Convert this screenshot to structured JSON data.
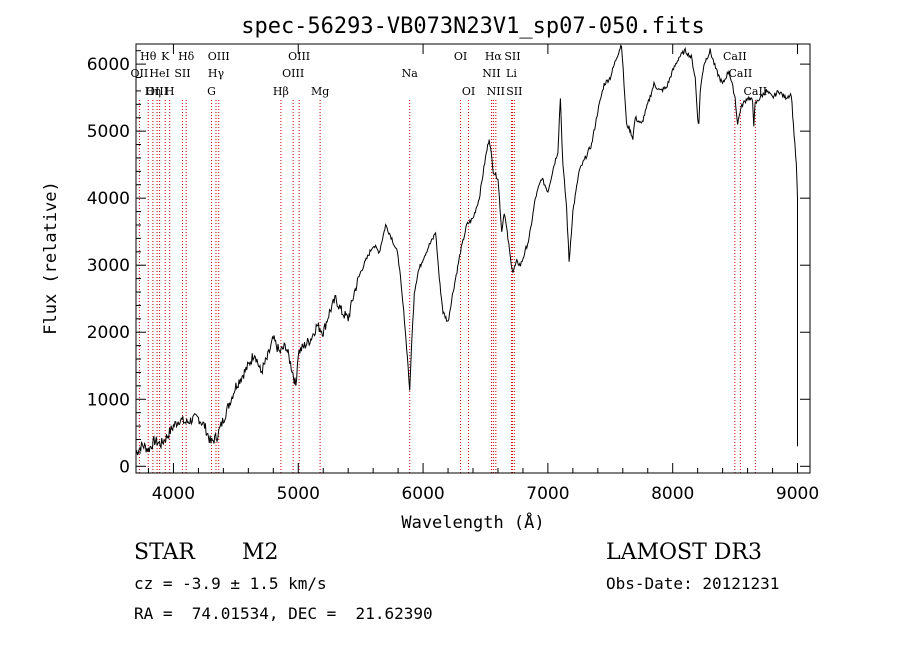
{
  "chart_data": {
    "type": "line",
    "title": "spec-56293-VB073N23V1_sp07-050.fits",
    "xlabel": "Wavelength (Å)",
    "ylabel": "Flux (relative)",
    "xlim": [
      3700,
      9100
    ],
    "ylim": [
      -100,
      6300
    ],
    "xticks": [
      4000,
      5000,
      6000,
      7000,
      8000,
      9000
    ],
    "yticks": [
      0,
      1000,
      2000,
      3000,
      4000,
      5000,
      6000
    ],
    "spectrum": {
      "x": [
        3700,
        3750,
        3800,
        3850,
        3900,
        3950,
        4000,
        4050,
        4100,
        4150,
        4200,
        4250,
        4300,
        4350,
        4400,
        4450,
        4500,
        4550,
        4600,
        4650,
        4700,
        4750,
        4800,
        4850,
        4900,
        4950,
        4980,
        5000,
        5050,
        5100,
        5150,
        5180,
        5200,
        5250,
        5300,
        5350,
        5400,
        5450,
        5500,
        5550,
        5600,
        5650,
        5700,
        5750,
        5800,
        5850,
        5880,
        5893,
        5905,
        5930,
        5960,
        6000,
        6050,
        6080,
        6100,
        6130,
        6160,
        6200,
        6230,
        6260,
        6300,
        6350,
        6400,
        6450,
        6500,
        6530,
        6563,
        6600,
        6630,
        6650,
        6680,
        6700,
        6720,
        6750,
        6780,
        6800,
        6850,
        6900,
        6950,
        7000,
        7050,
        7080,
        7100,
        7120,
        7150,
        7170,
        7200,
        7250,
        7300,
        7350,
        7400,
        7450,
        7500,
        7550,
        7590,
        7610,
        7630,
        7650,
        7680,
        7700,
        7750,
        7800,
        7850,
        7900,
        7950,
        8000,
        8050,
        8100,
        8150,
        8180,
        8200,
        8210,
        8220,
        8250,
        8300,
        8350,
        8400,
        8450,
        8500,
        8520,
        8540,
        8560,
        8600,
        8640,
        8650,
        8660,
        8700,
        8750,
        8800,
        8850,
        8900,
        8950,
        8990,
        9000
      ],
      "flux": [
        200,
        320,
        250,
        380,
        330,
        450,
        600,
        700,
        650,
        700,
        720,
        600,
        350,
        450,
        700,
        950,
        1200,
        1350,
        1500,
        1700,
        1400,
        1600,
        1900,
        1700,
        1800,
        1450,
        1200,
        1700,
        1800,
        1900,
        2100,
        2050,
        2000,
        2300,
        2500,
        2300,
        2200,
        2600,
        2900,
        3100,
        3300,
        3200,
        3600,
        3400,
        3150,
        2200,
        1500,
        1100,
        1700,
        2600,
        2900,
        3100,
        3300,
        3400,
        3500,
        2800,
        2300,
        2150,
        2500,
        2800,
        3200,
        3600,
        3700,
        4000,
        4600,
        4900,
        4400,
        4300,
        3500,
        3800,
        3400,
        3100,
        2900,
        3050,
        3000,
        3100,
        3400,
        4000,
        4300,
        4100,
        4500,
        4700,
        5500,
        4500,
        3850,
        3050,
        3800,
        4400,
        4600,
        4800,
        5300,
        5700,
        5800,
        6100,
        6300,
        5700,
        5100,
        5050,
        4900,
        5200,
        5100,
        5400,
        5700,
        5600,
        5650,
        5900,
        6100,
        6200,
        6100,
        5800,
        5200,
        5100,
        5600,
        6000,
        6200,
        5900,
        5700,
        5900,
        5500,
        5100,
        5300,
        5400,
        5500,
        5450,
        5100,
        5400,
        5500,
        5600,
        5500,
        5600,
        5500,
        5550,
        4500,
        4000
      ]
    },
    "line_markers": [
      {
        "name": "Hθ",
        "x": 3798,
        "row": 0
      },
      {
        "name": "OII",
        "x": 3727,
        "row": 1
      },
      {
        "name": "OIII",
        "x": 3869,
        "row": 2
      },
      {
        "name": "Hη",
        "x": 3835,
        "row": 2
      },
      {
        "name": "HeI",
        "x": 3889,
        "row": 1
      },
      {
        "name": "K",
        "x": 3934,
        "row": 0
      },
      {
        "name": "H",
        "x": 3970,
        "row": 2
      },
      {
        "name": "SII",
        "x": 4072,
        "row": 1
      },
      {
        "name": "Hδ",
        "x": 4102,
        "row": 0
      },
      {
        "name": "OIII",
        "x": 4363,
        "row": 0
      },
      {
        "name": "Hγ",
        "x": 4341,
        "row": 1
      },
      {
        "name": "G",
        "x": 4305,
        "row": 2
      },
      {
        "name": "Hβ",
        "x": 4861,
        "row": 2
      },
      {
        "name": "OIII",
        "x": 4959,
        "row": 1
      },
      {
        "name": "OIII",
        "x": 5007,
        "row": 0
      },
      {
        "name": "Mg",
        "x": 5175,
        "row": 2
      },
      {
        "name": "Na",
        "x": 5893,
        "row": 1
      },
      {
        "name": "OI",
        "x": 6300,
        "row": 0
      },
      {
        "name": "OI",
        "x": 6364,
        "row": 2
      },
      {
        "name": "NII",
        "x": 6548,
        "row": 1
      },
      {
        "name": "Hα",
        "x": 6563,
        "row": 0
      },
      {
        "name": "NII",
        "x": 6583,
        "row": 2
      },
      {
        "name": "Li",
        "x": 6708,
        "row": 1
      },
      {
        "name": "SII",
        "x": 6716,
        "row": 0
      },
      {
        "name": "SII",
        "x": 6731,
        "row": 2
      },
      {
        "name": "CaII",
        "x": 8498,
        "row": 0
      },
      {
        "name": "CaII",
        "x": 8542,
        "row": 1
      },
      {
        "name": "CaII",
        "x": 8662,
        "row": 2
      }
    ],
    "marker_color": "#cc0000"
  },
  "info": {
    "class": "STAR",
    "subclass": "M2",
    "survey": "LAMOST DR3",
    "cz": "cz = -3.9 ± 1.5 km/s",
    "obs_date": "Obs-Date: 20121231",
    "coords": "RA =  74.01534, DEC =  21.62390"
  }
}
